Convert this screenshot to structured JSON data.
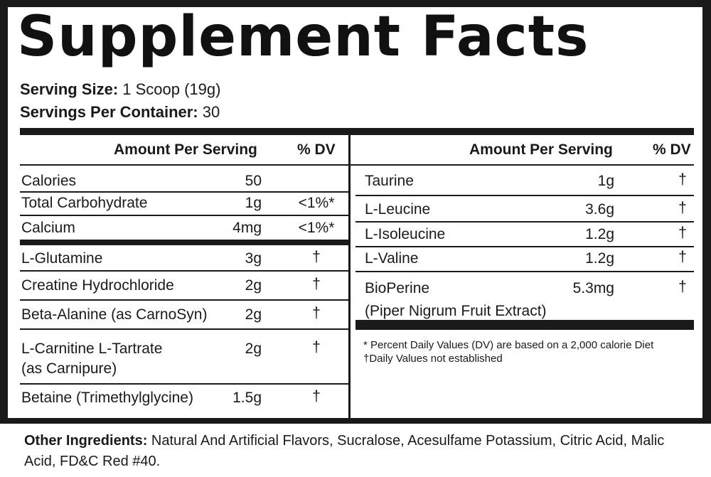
{
  "title": "Supplement Facts",
  "serving": {
    "size_label": "Serving Size:",
    "size_value": "1 Scoop (19g)",
    "per_container_label": "Servings Per Container:",
    "per_container_value": "30"
  },
  "headers": {
    "amount": "Amount Per Serving",
    "dv": "% DV"
  },
  "left_rows": [
    {
      "name": "Calories",
      "amount": "50",
      "dv": ""
    },
    {
      "name": "Total Carbohydrate",
      "amount": "1g",
      "dv": "<1%*"
    },
    {
      "name": "Calcium",
      "amount": "4mg",
      "dv": "<1%*"
    },
    {
      "name": "L-Glutamine",
      "amount": "3g",
      "dv": "†"
    },
    {
      "name": "Creatine Hydrochloride",
      "amount": "2g",
      "dv": "†"
    },
    {
      "name": "Beta-Alanine (as CarnoSyn)",
      "amount": "2g",
      "dv": "†"
    },
    {
      "name": "L-Carnitine L-Tartrate",
      "sub": "(as Carnipure)",
      "amount": "2g",
      "dv": "†"
    },
    {
      "name": "Betaine (Trimethylglycine)",
      "amount": "1.5g",
      "dv": "†"
    }
  ],
  "right_rows": [
    {
      "name": "Taurine",
      "amount": "1g",
      "dv": "†"
    },
    {
      "name": "L-Leucine",
      "amount": "3.6g",
      "dv": "†"
    },
    {
      "name": "L-Isoleucine",
      "amount": "1.2g",
      "dv": "†"
    },
    {
      "name": "L-Valine",
      "amount": "1.2g",
      "dv": "†"
    },
    {
      "name": "BioPerine",
      "sub": "(Piper Nigrum Fruit Extract)",
      "amount": "5.3mg",
      "dv": "†"
    }
  ],
  "footnotes": {
    "dv_note": "* Percent Daily Values (DV) are based on a 2,000 calorie Diet",
    "dagger_note": "†Daily Values not established"
  },
  "other_ingredients": {
    "label": "Other Ingredients:",
    "text": "Natural And Artificial Flavors, Sucralose, Acesulfame Potassium, Citric Acid, Malic Acid, FD&C Red #40."
  }
}
